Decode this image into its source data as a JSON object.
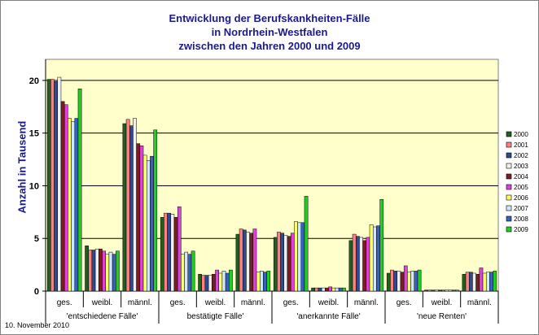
{
  "chart_data": {
    "type": "bar",
    "title_lines": [
      "Entwicklung der Berufskankheiten-Fälle",
      "in Nordrhein-Westfalen",
      "zwischen den Jahren 2000 und 2009"
    ],
    "ylabel": "Anzahl in Tausend",
    "ylim": [
      0,
      22
    ],
    "yticks": [
      0,
      5,
      10,
      15,
      20
    ],
    "grid": true,
    "plot_background": "#ffffcc",
    "legend_position": "right",
    "categories": [
      "ges.",
      "weibl.",
      "männl.",
      "ges.",
      "weibl.",
      "männl.",
      "ges.",
      "weibl.",
      "männl.",
      "ges.",
      "weibl.",
      "männl."
    ],
    "groups": [
      {
        "label": "'entschiedene Fälle'",
        "categories": [
          0,
          1,
          2
        ]
      },
      {
        "label": "bestätigte Fälle'",
        "categories": [
          3,
          4,
          5
        ]
      },
      {
        "label": "'anerkannte Fälle'",
        "categories": [
          6,
          7,
          8
        ]
      },
      {
        "label": "'neue Renten'",
        "categories": [
          9,
          10,
          11
        ]
      }
    ],
    "series": [
      {
        "name": "2000",
        "color": "#1f5f1f",
        "values": [
          20.1,
          4.3,
          15.9,
          7.0,
          1.6,
          5.4,
          5.1,
          0.3,
          4.8,
          1.7,
          0.1,
          1.6
        ]
      },
      {
        "name": "2001",
        "color": "#ff8080",
        "values": [
          20.1,
          3.9,
          16.3,
          7.4,
          1.5,
          5.9,
          5.6,
          0.3,
          5.4,
          2.0,
          0.1,
          1.8
        ]
      },
      {
        "name": "2002",
        "color": "#2e4b8f",
        "values": [
          19.9,
          3.9,
          15.7,
          7.4,
          1.5,
          5.8,
          5.5,
          0.3,
          5.2,
          1.9,
          0.1,
          1.8
        ]
      },
      {
        "name": "2003",
        "color": "#f0f0f0",
        "values": [
          20.3,
          4.0,
          16.4,
          7.3,
          1.5,
          5.6,
          5.3,
          0.3,
          5.1,
          1.9,
          0.1,
          1.7
        ]
      },
      {
        "name": "2004",
        "color": "#7a1f1f",
        "values": [
          18.0,
          4.0,
          14.0,
          7.0,
          1.6,
          5.5,
          5.2,
          0.3,
          4.8,
          1.8,
          0.1,
          1.6
        ]
      },
      {
        "name": "2005",
        "color": "#e040e0",
        "values": [
          17.7,
          3.8,
          13.8,
          8.0,
          2.0,
          5.9,
          5.5,
          0.4,
          5.1,
          2.4,
          0.1,
          2.2
        ]
      },
      {
        "name": "2006",
        "color": "#ffff66",
        "values": [
          16.4,
          3.5,
          12.9,
          3.5,
          1.7,
          1.8,
          6.6,
          0.3,
          6.3,
          1.8,
          0.1,
          1.7
        ]
      },
      {
        "name": "2007",
        "color": "#d0e8ff",
        "values": [
          16.1,
          3.7,
          12.4,
          3.7,
          1.9,
          1.9,
          6.5,
          0.3,
          6.1,
          1.9,
          0.1,
          1.8
        ]
      },
      {
        "name": "2008",
        "color": "#3a5fc0",
        "values": [
          16.4,
          3.5,
          12.8,
          3.5,
          1.7,
          1.8,
          6.5,
          0.3,
          6.2,
          1.9,
          0.1,
          1.8
        ]
      },
      {
        "name": "2009",
        "color": "#22cc22",
        "values": [
          19.2,
          3.8,
          15.3,
          3.8,
          2.0,
          1.9,
          9.0,
          0.3,
          8.7,
          2.0,
          0.1,
          1.9
        ]
      }
    ]
  },
  "footer": {
    "date": "10. November 2010"
  }
}
